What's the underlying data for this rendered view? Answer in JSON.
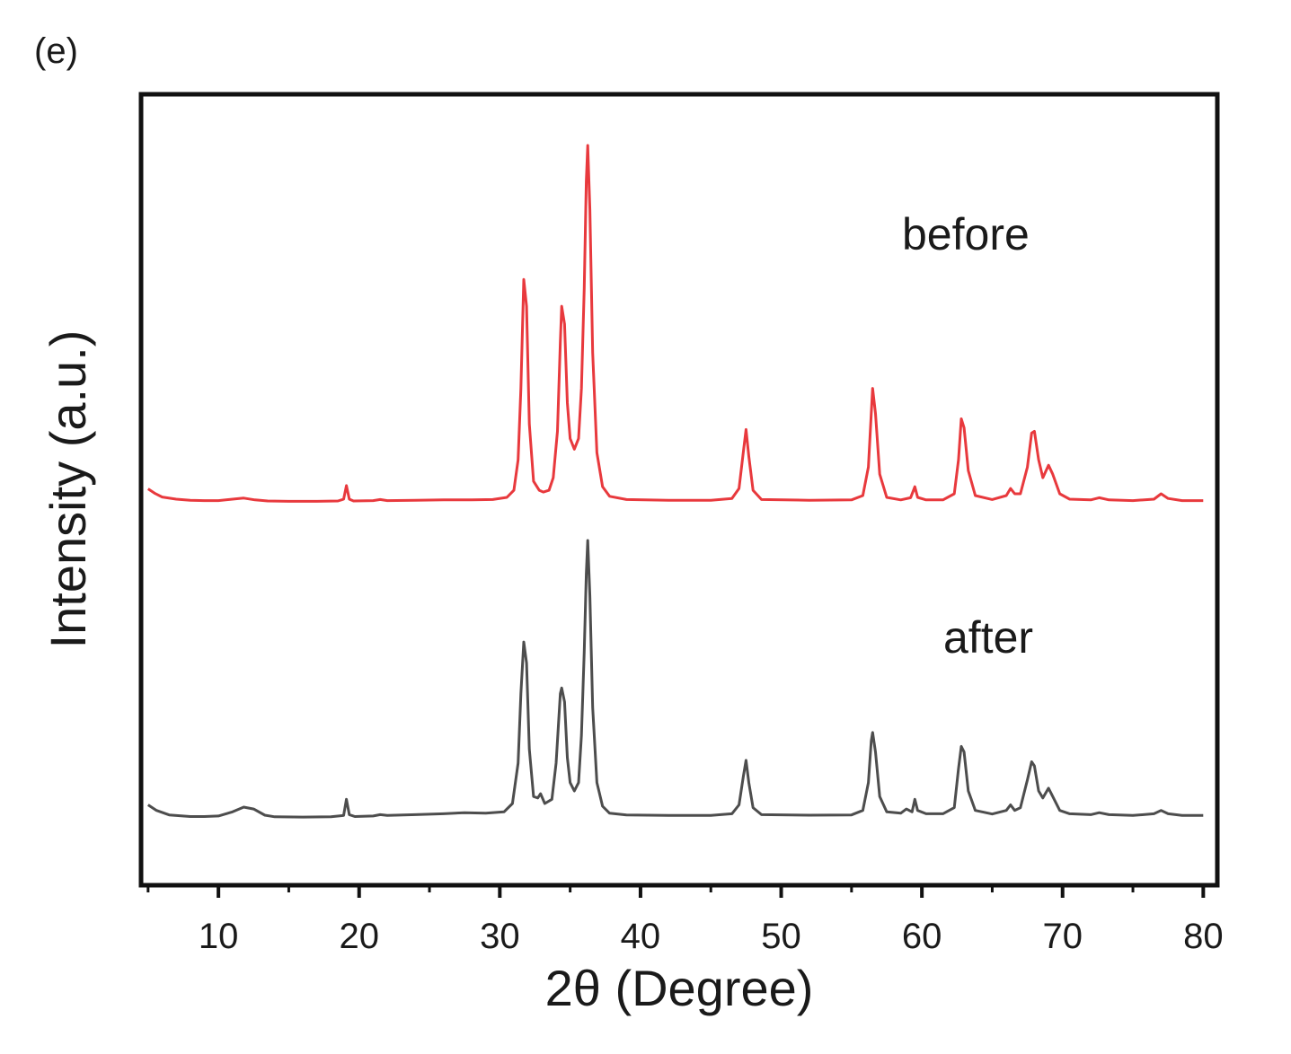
{
  "panel_label": "(e)",
  "chart_data": {
    "type": "line",
    "xlabel": "2θ (Degree)",
    "ylabel": "Intensity (a.u.)",
    "xlim": [
      4.5,
      81
    ],
    "x_ticks": [
      10,
      20,
      30,
      40,
      50,
      60,
      70,
      80
    ],
    "x_tick_labels": [
      "10",
      "20",
      "30",
      "40",
      "50",
      "60",
      "70",
      "80"
    ],
    "x_minor_ticks": [
      5,
      15,
      25,
      35,
      45,
      55,
      65,
      75
    ],
    "y_ticks": "none",
    "grid": false,
    "legend": "none",
    "series": [
      {
        "label": "before",
        "color": "#e8393d",
        "points": [
          [
            5.0,
            3.9
          ],
          [
            5.5,
            2.6
          ],
          [
            6.0,
            1.6
          ],
          [
            7.0,
            1.0
          ],
          [
            8.0,
            0.7
          ],
          [
            9.0,
            0.6
          ],
          [
            10.0,
            0.6
          ],
          [
            11.0,
            1.0
          ],
          [
            11.8,
            1.3
          ],
          [
            12.6,
            0.8
          ],
          [
            13.5,
            0.5
          ],
          [
            15.0,
            0.4
          ],
          [
            17.0,
            0.4
          ],
          [
            18.5,
            0.5
          ],
          [
            18.9,
            1.0
          ],
          [
            19.1,
            4.8
          ],
          [
            19.3,
            1.0
          ],
          [
            19.6,
            0.5
          ],
          [
            21.0,
            0.6
          ],
          [
            21.5,
            0.9
          ],
          [
            22.0,
            0.6
          ],
          [
            24.0,
            0.7
          ],
          [
            26.0,
            0.8
          ],
          [
            28.0,
            0.8
          ],
          [
            29.5,
            0.9
          ],
          [
            30.5,
            1.5
          ],
          [
            31.0,
            3.5
          ],
          [
            31.3,
            12.0
          ],
          [
            31.5,
            32.0
          ],
          [
            31.7,
            62.5
          ],
          [
            31.9,
            55.0
          ],
          [
            32.1,
            22.0
          ],
          [
            32.4,
            6.0
          ],
          [
            32.8,
            3.5
          ],
          [
            33.1,
            3.0
          ],
          [
            33.5,
            3.5
          ],
          [
            33.8,
            7.0
          ],
          [
            34.1,
            20.0
          ],
          [
            34.3,
            45.0
          ],
          [
            34.4,
            55.0
          ],
          [
            34.6,
            50.0
          ],
          [
            34.8,
            28.0
          ],
          [
            35.0,
            18.0
          ],
          [
            35.3,
            15.0
          ],
          [
            35.6,
            18.0
          ],
          [
            35.8,
            32.0
          ],
          [
            36.0,
            60.0
          ],
          [
            36.15,
            90.0
          ],
          [
            36.25,
            100.0
          ],
          [
            36.4,
            82.0
          ],
          [
            36.6,
            42.0
          ],
          [
            36.9,
            14.0
          ],
          [
            37.3,
            4.5
          ],
          [
            37.8,
            1.8
          ],
          [
            39.0,
            0.9
          ],
          [
            42.0,
            0.7
          ],
          [
            45.0,
            0.7
          ],
          [
            46.5,
            1.2
          ],
          [
            47.0,
            4.0
          ],
          [
            47.3,
            14.0
          ],
          [
            47.5,
            20.5
          ],
          [
            47.7,
            13.0
          ],
          [
            48.0,
            3.5
          ],
          [
            48.6,
            0.9
          ],
          [
            52.0,
            0.7
          ],
          [
            55.0,
            0.8
          ],
          [
            55.8,
            2.0
          ],
          [
            56.2,
            10.0
          ],
          [
            56.4,
            25.0
          ],
          [
            56.5,
            32.0
          ],
          [
            56.7,
            25.0
          ],
          [
            57.0,
            8.0
          ],
          [
            57.5,
            1.5
          ],
          [
            58.5,
            0.8
          ],
          [
            59.2,
            1.4
          ],
          [
            59.5,
            4.5
          ],
          [
            59.7,
            1.5
          ],
          [
            60.3,
            0.8
          ],
          [
            61.5,
            0.8
          ],
          [
            62.3,
            2.5
          ],
          [
            62.6,
            12.0
          ],
          [
            62.8,
            23.5
          ],
          [
            63.0,
            21.0
          ],
          [
            63.3,
            9.0
          ],
          [
            63.8,
            2.0
          ],
          [
            65.0,
            0.9
          ],
          [
            66.0,
            2.0
          ],
          [
            66.3,
            4.0
          ],
          [
            66.6,
            2.5
          ],
          [
            67.0,
            2.5
          ],
          [
            67.5,
            10.0
          ],
          [
            67.8,
            19.5
          ],
          [
            68.0,
            20.0
          ],
          [
            68.3,
            12.0
          ],
          [
            68.6,
            7.0
          ],
          [
            69.0,
            10.5
          ],
          [
            69.3,
            8.0
          ],
          [
            69.8,
            2.5
          ],
          [
            70.5,
            1.0
          ],
          [
            72.0,
            0.8
          ],
          [
            72.6,
            1.4
          ],
          [
            73.3,
            0.8
          ],
          [
            75.0,
            0.6
          ],
          [
            76.5,
            1.0
          ],
          [
            77.0,
            2.5
          ],
          [
            77.5,
            1.2
          ],
          [
            78.5,
            0.6
          ],
          [
            80.0,
            0.6
          ]
        ]
      },
      {
        "label": "after",
        "color": "#4d4d4d",
        "points": [
          [
            5.0,
            5.0
          ],
          [
            5.6,
            3.0
          ],
          [
            6.5,
            1.4
          ],
          [
            8.0,
            0.8
          ],
          [
            9.0,
            0.8
          ],
          [
            10.0,
            1.0
          ],
          [
            11.0,
            2.5
          ],
          [
            11.8,
            4.2
          ],
          [
            12.5,
            3.5
          ],
          [
            13.3,
            1.3
          ],
          [
            14.0,
            0.7
          ],
          [
            16.0,
            0.6
          ],
          [
            18.0,
            0.7
          ],
          [
            18.9,
            1.2
          ],
          [
            19.1,
            7.0
          ],
          [
            19.3,
            1.5
          ],
          [
            19.7,
            0.8
          ],
          [
            21.0,
            1.0
          ],
          [
            21.5,
            1.5
          ],
          [
            22.0,
            1.2
          ],
          [
            24.0,
            1.5
          ],
          [
            26.0,
            1.8
          ],
          [
            27.5,
            2.2
          ],
          [
            29.0,
            2.0
          ],
          [
            30.3,
            2.5
          ],
          [
            30.9,
            5.5
          ],
          [
            31.3,
            20.0
          ],
          [
            31.5,
            45.0
          ],
          [
            31.7,
            63.5
          ],
          [
            31.9,
            56.0
          ],
          [
            32.1,
            25.0
          ],
          [
            32.4,
            8.0
          ],
          [
            32.7,
            7.5
          ],
          [
            32.9,
            9.0
          ],
          [
            33.2,
            5.5
          ],
          [
            33.7,
            7.0
          ],
          [
            34.0,
            20.0
          ],
          [
            34.3,
            45.0
          ],
          [
            34.4,
            47.0
          ],
          [
            34.6,
            42.0
          ],
          [
            34.8,
            22.0
          ],
          [
            35.0,
            13.0
          ],
          [
            35.3,
            10.0
          ],
          [
            35.6,
            13.0
          ],
          [
            35.8,
            30.0
          ],
          [
            36.0,
            60.0
          ],
          [
            36.15,
            88.0
          ],
          [
            36.25,
            100.0
          ],
          [
            36.4,
            80.0
          ],
          [
            36.6,
            40.0
          ],
          [
            36.9,
            13.0
          ],
          [
            37.3,
            4.5
          ],
          [
            37.8,
            2.0
          ],
          [
            39.0,
            1.4
          ],
          [
            42.0,
            1.2
          ],
          [
            45.0,
            1.2
          ],
          [
            46.5,
            1.8
          ],
          [
            47.0,
            5.0
          ],
          [
            47.3,
            15.0
          ],
          [
            47.5,
            21.0
          ],
          [
            47.7,
            13.0
          ],
          [
            48.0,
            4.0
          ],
          [
            48.6,
            1.5
          ],
          [
            52.0,
            1.3
          ],
          [
            55.0,
            1.4
          ],
          [
            55.8,
            3.0
          ],
          [
            56.2,
            13.0
          ],
          [
            56.4,
            28.0
          ],
          [
            56.5,
            31.0
          ],
          [
            56.7,
            24.0
          ],
          [
            57.0,
            8.0
          ],
          [
            57.5,
            2.5
          ],
          [
            58.5,
            2.0
          ],
          [
            58.9,
            3.5
          ],
          [
            59.3,
            2.5
          ],
          [
            59.5,
            7.0
          ],
          [
            59.7,
            3.0
          ],
          [
            60.3,
            1.8
          ],
          [
            61.5,
            1.8
          ],
          [
            62.3,
            4.0
          ],
          [
            62.6,
            18.0
          ],
          [
            62.8,
            26.0
          ],
          [
            63.0,
            24.0
          ],
          [
            63.3,
            10.0
          ],
          [
            63.8,
            3.0
          ],
          [
            65.0,
            1.7
          ],
          [
            66.0,
            3.0
          ],
          [
            66.3,
            5.0
          ],
          [
            66.6,
            3.0
          ],
          [
            67.0,
            4.0
          ],
          [
            67.5,
            14.0
          ],
          [
            67.8,
            20.5
          ],
          [
            68.0,
            19.0
          ],
          [
            68.3,
            10.0
          ],
          [
            68.6,
            7.5
          ],
          [
            69.0,
            11.0
          ],
          [
            69.3,
            8.0
          ],
          [
            69.8,
            3.0
          ],
          [
            70.5,
            1.8
          ],
          [
            72.0,
            1.5
          ],
          [
            72.6,
            2.2
          ],
          [
            73.3,
            1.5
          ],
          [
            75.0,
            1.2
          ],
          [
            76.5,
            1.8
          ],
          [
            77.0,
            3.0
          ],
          [
            77.5,
            1.8
          ],
          [
            78.5,
            1.2
          ],
          [
            80.0,
            1.2
          ]
        ]
      }
    ]
  }
}
